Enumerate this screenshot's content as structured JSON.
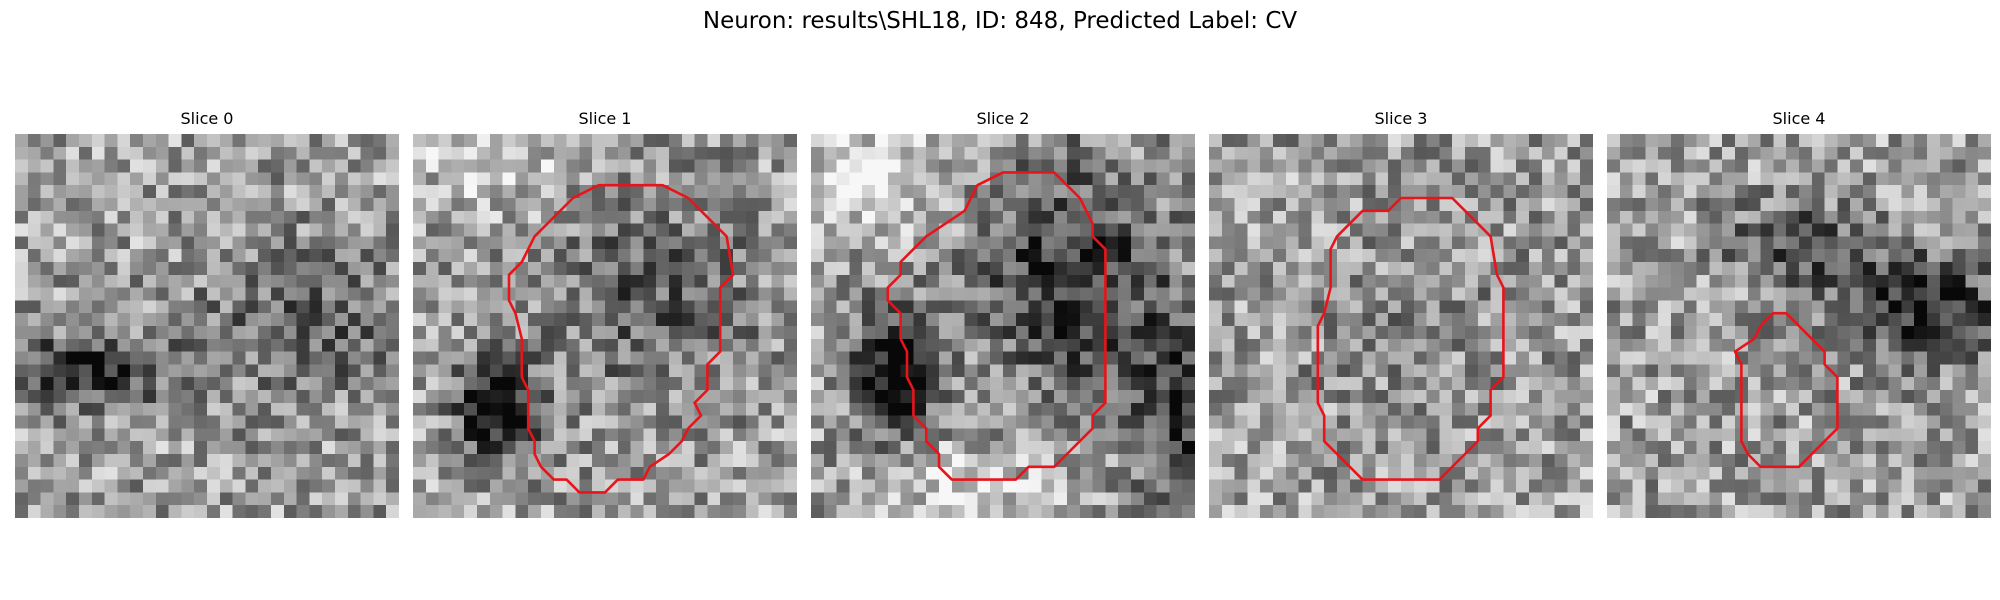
{
  "figure": {
    "title": "Neuron: results\\SHL18, ID: 848, Predicted Label: CV"
  },
  "panels": [
    {
      "title": "Slice 0",
      "has_contour": false,
      "dark_blobs": [
        "left-middle"
      ]
    },
    {
      "title": "Slice 1",
      "has_contour": true,
      "dark_blobs": [
        "lower-left"
      ]
    },
    {
      "title": "Slice 2",
      "has_contour": true,
      "dark_blobs": [
        "left-diagonal",
        "right-edge"
      ]
    },
    {
      "title": "Slice 3",
      "has_contour": true,
      "dark_blobs": []
    },
    {
      "title": "Slice 4",
      "has_contour": true,
      "dark_blobs": [
        "upper-right"
      ]
    }
  ],
  "colors": {
    "contour": "#e8141a",
    "background": "#ffffff"
  },
  "image_style": "grayscale-noise-pixel-grid"
}
